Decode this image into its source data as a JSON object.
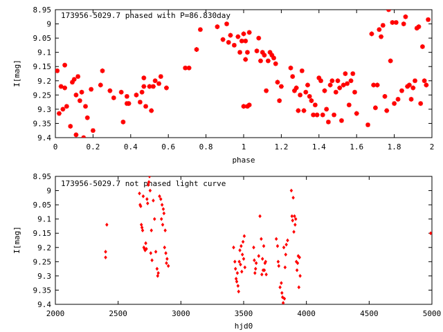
{
  "chart_data": [
    {
      "type": "scatter",
      "title": "173956-5029.7 phased with P=86.830day",
      "xlabel": "phase",
      "ylabel": "I[mag]",
      "xlim": [
        0,
        2
      ],
      "ylim": [
        9.4,
        8.95
      ],
      "y_inverted": true,
      "grid": false,
      "x_ticks": [
        0,
        0.2,
        0.4,
        0.6,
        0.8,
        1,
        1.2,
        1.4,
        1.6,
        1.8,
        2
      ],
      "x_tick_labels": [
        "0",
        "0.2",
        "0.4",
        "0.6",
        "0.8",
        "1",
        "1.2",
        "1.4",
        "1.6",
        "1.8",
        "2"
      ],
      "y_ticks": [
        8.95,
        9,
        9.05,
        9.1,
        9.15,
        9.2,
        9.25,
        9.3,
        9.35,
        9.4
      ],
      "y_tick_labels": [
        "8.95",
        "9",
        "9.05",
        "9.1",
        "9.15",
        "9.2",
        "9.25",
        "9.3",
        "9.35",
        "9.4"
      ],
      "marker_color": "#ff0000",
      "marker": "star",
      "points": [
        [
          0.01,
          9.165
        ],
        [
          0.02,
          9.315
        ],
        [
          0.03,
          9.22
        ],
        [
          0.04,
          9.3
        ],
        [
          0.05,
          9.225
        ],
        [
          0.05,
          9.145
        ],
        [
          0.06,
          9.29
        ],
        [
          0.08,
          9.36
        ],
        [
          0.09,
          9.205
        ],
        [
          0.1,
          9.195
        ],
        [
          0.11,
          9.39
        ],
        [
          0.11,
          9.25
        ],
        [
          0.12,
          9.185
        ],
        [
          0.13,
          9.27
        ],
        [
          0.14,
          9.24
        ],
        [
          0.15,
          9.4
        ],
        [
          0.16,
          9.29
        ],
        [
          0.17,
          9.33
        ],
        [
          0.19,
          9.23
        ],
        [
          0.2,
          9.375
        ],
        [
          0.24,
          9.215
        ],
        [
          0.25,
          9.165
        ],
        [
          0.29,
          9.235
        ],
        [
          0.31,
          9.26
        ],
        [
          0.35,
          9.24
        ],
        [
          0.36,
          9.345
        ],
        [
          0.38,
          9.255
        ],
        [
          0.38,
          9.28
        ],
        [
          0.39,
          9.28
        ],
        [
          0.43,
          9.25
        ],
        [
          0.45,
          9.275
        ],
        [
          0.46,
          9.24
        ],
        [
          0.47,
          9.22
        ],
        [
          0.47,
          9.19
        ],
        [
          0.48,
          9.29
        ],
        [
          0.5,
          9.22
        ],
        [
          0.51,
          9.305
        ],
        [
          0.52,
          9.22
        ],
        [
          0.53,
          9.2
        ],
        [
          0.55,
          9.21
        ],
        [
          0.56,
          9.185
        ],
        [
          0.59,
          9.225
        ],
        [
          0.69,
          9.155
        ],
        [
          0.71,
          9.155
        ],
        [
          0.75,
          9.09
        ],
        [
          0.77,
          9.02
        ],
        [
          0.86,
          9.01
        ],
        [
          0.89,
          9.055
        ],
        [
          0.91,
          9.0
        ],
        [
          0.92,
          9.065
        ],
        [
          0.93,
          9.04
        ],
        [
          0.95,
          9.075
        ],
        [
          0.97,
          9.045
        ],
        [
          0.98,
          9.1
        ],
        [
          0.99,
          9.06
        ],
        [
          1.0,
          9.035
        ],
        [
          1.01,
          9.06
        ],
        [
          1.02,
          9.1
        ],
        [
          1.0,
          9.29
        ],
        [
          1.02,
          9.29
        ],
        [
          1.03,
          9.285
        ],
        [
          1.01,
          9.125
        ],
        [
          1.03,
          9.03
        ],
        [
          1.07,
          9.095
        ],
        [
          1.08,
          9.05
        ],
        [
          1.09,
          9.13
        ],
        [
          1.1,
          9.1
        ],
        [
          1.11,
          9.11
        ],
        [
          1.12,
          9.235
        ],
        [
          1.13,
          9.13
        ],
        [
          1.14,
          9.1
        ],
        [
          1.15,
          9.11
        ],
        [
          1.16,
          9.12
        ],
        [
          1.17,
          9.14
        ],
        [
          1.18,
          9.205
        ],
        [
          1.19,
          9.27
        ],
        [
          1.2,
          9.22
        ],
        [
          1.25,
          9.155
        ],
        [
          1.26,
          9.185
        ],
        [
          1.27,
          9.235
        ],
        [
          1.28,
          9.225
        ],
        [
          1.29,
          9.305
        ],
        [
          1.3,
          9.25
        ],
        [
          1.31,
          9.165
        ],
        [
          1.32,
          9.305
        ],
        [
          1.33,
          9.24
        ],
        [
          1.34,
          9.215
        ],
        [
          1.35,
          9.255
        ],
        [
          1.36,
          9.27
        ],
        [
          1.37,
          9.32
        ],
        [
          1.38,
          9.285
        ],
        [
          1.39,
          9.32
        ],
        [
          1.4,
          9.19
        ],
        [
          1.41,
          9.2
        ],
        [
          1.42,
          9.32
        ],
        [
          1.43,
          9.235
        ],
        [
          1.44,
          9.3
        ],
        [
          1.45,
          9.345
        ],
        [
          1.46,
          9.215
        ],
        [
          1.47,
          9.2
        ],
        [
          1.48,
          9.32
        ],
        [
          1.49,
          9.24
        ],
        [
          1.5,
          9.2
        ],
        [
          1.51,
          9.225
        ],
        [
          1.52,
          9.34
        ],
        [
          1.53,
          9.215
        ],
        [
          1.54,
          9.175
        ],
        [
          1.55,
          9.21
        ],
        [
          1.56,
          9.285
        ],
        [
          1.57,
          9.2
        ],
        [
          1.58,
          9.175
        ],
        [
          1.59,
          9.24
        ],
        [
          1.6,
          9.315
        ],
        [
          1.66,
          9.355
        ],
        [
          1.68,
          9.035
        ],
        [
          1.69,
          9.215
        ],
        [
          1.7,
          9.295
        ],
        [
          1.71,
          9.215
        ],
        [
          1.72,
          9.02
        ],
        [
          1.73,
          9.045
        ],
        [
          1.74,
          9.005
        ],
        [
          1.75,
          9.255
        ],
        [
          1.76,
          9.305
        ],
        [
          1.77,
          8.95
        ],
        [
          1.78,
          9.13
        ],
        [
          1.79,
          8.995
        ],
        [
          1.8,
          9.28
        ],
        [
          1.81,
          8.995
        ],
        [
          1.82,
          9.265
        ],
        [
          1.84,
          9.235
        ],
        [
          1.85,
          9.0
        ],
        [
          1.86,
          8.975
        ],
        [
          1.87,
          9.22
        ],
        [
          1.88,
          9.215
        ],
        [
          1.89,
          9.265
        ],
        [
          1.9,
          9.225
        ],
        [
          1.91,
          9.2
        ],
        [
          1.92,
          9.015
        ],
        [
          1.93,
          9.01
        ],
        [
          1.94,
          9.28
        ],
        [
          1.95,
          9.08
        ],
        [
          1.96,
          9.2
        ],
        [
          1.97,
          9.215
        ],
        [
          1.98,
          8.985
        ]
      ]
    },
    {
      "type": "scatter",
      "title": "173956-5029.7 not phased light curve",
      "xlabel": "hjd0",
      "ylabel": "I[mag]",
      "xlim": [
        2000,
        5000
      ],
      "ylim": [
        9.4,
        8.95
      ],
      "y_inverted": true,
      "grid": false,
      "x_ticks": [
        2000,
        2500,
        3000,
        3500,
        4000,
        4500,
        5000
      ],
      "x_tick_labels": [
        "2000",
        "2500",
        "3000",
        "3500",
        "4000",
        "4500",
        "5000"
      ],
      "y_ticks": [
        8.95,
        9,
        9.05,
        9.1,
        9.15,
        9.2,
        9.25,
        9.3,
        9.35,
        9.4
      ],
      "y_tick_labels": [
        "8.95",
        "9",
        "9.05",
        "9.1",
        "9.15",
        "9.2",
        "9.25",
        "9.3",
        "9.35",
        "9.4"
      ],
      "marker_color": "#ff0000",
      "marker": "diamond",
      "points": [
        [
          2400,
          9.215
        ],
        [
          2400,
          9.235
        ],
        [
          2410,
          9.12
        ],
        [
          2670,
          9.01
        ],
        [
          2675,
          9.05
        ],
        [
          2680,
          9.055
        ],
        [
          2685,
          9.12
        ],
        [
          2690,
          9.13
        ],
        [
          2695,
          9.14
        ],
        [
          2700,
          9.02
        ],
        [
          2705,
          9.2
        ],
        [
          2710,
          9.205
        ],
        [
          2715,
          9.21
        ],
        [
          2720,
          9.185
        ],
        [
          2725,
          9.205
        ],
        [
          2730,
          9.03
        ],
        [
          2735,
          9.045
        ],
        [
          2740,
          8.98
        ],
        [
          2745,
          8.97
        ],
        [
          2750,
          8.95
        ],
        [
          2755,
          9.0
        ],
        [
          2760,
          9.22
        ],
        [
          2765,
          9.14
        ],
        [
          2770,
          9.245
        ],
        [
          2780,
          9.035
        ],
        [
          2790,
          9.1
        ],
        [
          2800,
          9.215
        ],
        [
          2810,
          9.275
        ],
        [
          2815,
          9.3
        ],
        [
          2820,
          9.29
        ],
        [
          2830,
          9.02
        ],
        [
          2840,
          9.03
        ],
        [
          2845,
          9.1
        ],
        [
          2850,
          9.05
        ],
        [
          2855,
          9.12
        ],
        [
          2860,
          9.065
        ],
        [
          2865,
          9.08
        ],
        [
          2870,
          9.2
        ],
        [
          2875,
          9.14
        ],
        [
          2880,
          9.22
        ],
        [
          2885,
          9.255
        ],
        [
          2890,
          9.24
        ],
        [
          2900,
          9.265
        ],
        [
          3420,
          9.2
        ],
        [
          3430,
          9.25
        ],
        [
          3435,
          9.275
        ],
        [
          3440,
          9.31
        ],
        [
          3445,
          9.32
        ],
        [
          3450,
          9.29
        ],
        [
          3455,
          9.335
        ],
        [
          3460,
          9.355
        ],
        [
          3465,
          9.25
        ],
        [
          3470,
          9.21
        ],
        [
          3475,
          9.26
        ],
        [
          3480,
          9.195
        ],
        [
          3485,
          9.285
        ],
        [
          3490,
          9.225
        ],
        [
          3495,
          9.18
        ],
        [
          3500,
          9.24
        ],
        [
          3505,
          9.16
        ],
        [
          3510,
          9.27
        ],
        [
          3580,
          9.2
        ],
        [
          3585,
          9.245
        ],
        [
          3590,
          9.29
        ],
        [
          3595,
          9.275
        ],
        [
          3600,
          9.255
        ],
        [
          3620,
          9.23
        ],
        [
          3630,
          9.09
        ],
        [
          3640,
          9.17
        ],
        [
          3645,
          9.295
        ],
        [
          3650,
          9.24
        ],
        [
          3655,
          9.28
        ],
        [
          3660,
          9.195
        ],
        [
          3665,
          9.28
        ],
        [
          3670,
          9.255
        ],
        [
          3675,
          9.25
        ],
        [
          3680,
          9.295
        ],
        [
          3760,
          9.17
        ],
        [
          3770,
          9.195
        ],
        [
          3775,
          9.25
        ],
        [
          3780,
          9.265
        ],
        [
          3790,
          9.34
        ],
        [
          3800,
          9.325
        ],
        [
          3805,
          9.36
        ],
        [
          3810,
          9.375
        ],
        [
          3815,
          9.395
        ],
        [
          3820,
          9.2
        ],
        [
          3825,
          9.38
        ],
        [
          3830,
          9.27
        ],
        [
          3835,
          9.225
        ],
        [
          3840,
          9.19
        ],
        [
          3850,
          9.175
        ],
        [
          3880,
          9.0
        ],
        [
          3885,
          9.09
        ],
        [
          3890,
          9.105
        ],
        [
          3895,
          9.025
        ],
        [
          3900,
          9.145
        ],
        [
          3905,
          9.09
        ],
        [
          3910,
          9.12
        ],
        [
          3915,
          9.1
        ],
        [
          3920,
          9.25
        ],
        [
          3925,
          9.28
        ],
        [
          3930,
          9.255
        ],
        [
          3935,
          9.23
        ],
        [
          3940,
          9.34
        ],
        [
          3945,
          9.235
        ],
        [
          3950,
          9.3
        ],
        [
          4990,
          9.15
        ]
      ]
    }
  ]
}
